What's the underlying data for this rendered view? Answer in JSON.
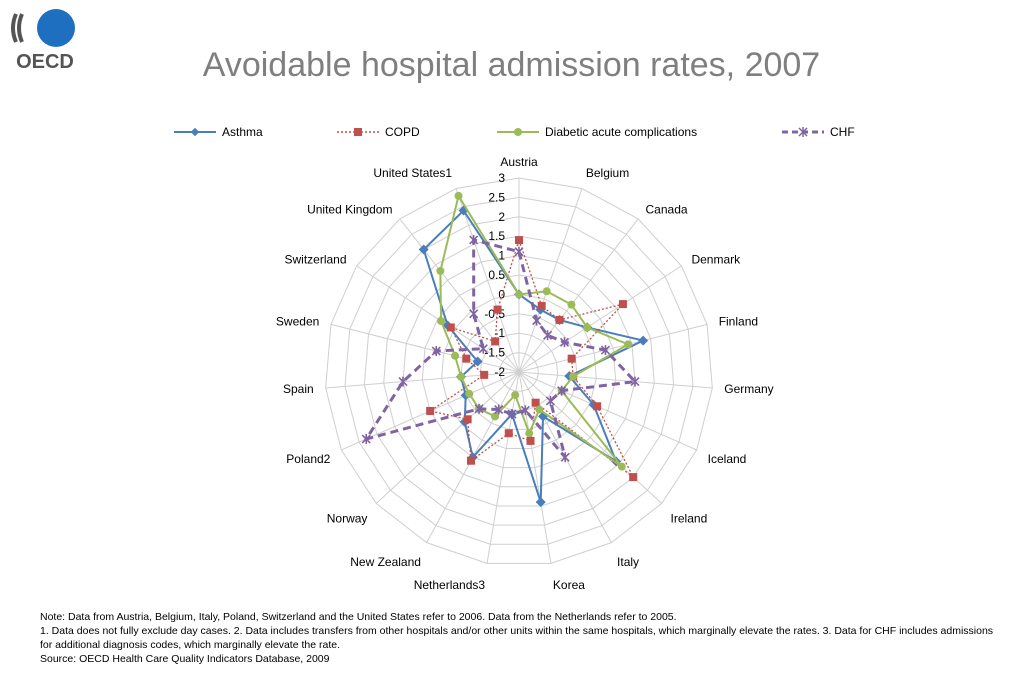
{
  "header": {
    "title": "Avoidable hospital admission rates, 2007",
    "logo_text": "OECD"
  },
  "legend": [
    {
      "name": "Asthma"
    },
    {
      "name": "COPD"
    },
    {
      "name": "Diabetic acute complications"
    },
    {
      "name": "CHF"
    }
  ],
  "chart_data": {
    "type": "radar",
    "title": "Avoidable hospital admission rates, 2007",
    "categories": [
      "Austria",
      "Belgium",
      "Canada",
      "Denmark",
      "Finland",
      "Germany",
      "Iceland",
      "Ireland",
      "Italy",
      "Korea",
      "Netherlands3",
      "New Zealand",
      "Norway",
      "Poland2",
      "Spain",
      "Sweden",
      "Switzerland",
      "United Kingdom",
      "United States1"
    ],
    "radial_range": [
      -2,
      3
    ],
    "radial_ticks": [
      "3",
      "2.5",
      "2",
      "1.5",
      "1",
      "0.5",
      "0",
      "-0.5",
      "-1",
      "-1.5",
      "-2"
    ],
    "tick_values": [
      3,
      2.5,
      2,
      1.5,
      1,
      0.5,
      0,
      -0.5,
      -1,
      -1.5,
      -2
    ],
    "grid": true,
    "legend_position": "top",
    "series": [
      {
        "name": "Asthma",
        "color": "#4a7ebb",
        "style": "solid",
        "marker": "diamond",
        "values": [
          0.0,
          -0.3,
          -0.3,
          0.1,
          1.3,
          -0.7,
          0.1,
          1.4,
          -0.7,
          1.4,
          -0.9,
          0.5,
          -0.1,
          -0.5,
          -0.5,
          -0.9,
          0.2,
          2.0,
          2.4
        ]
      },
      {
        "name": "COPD",
        "color": "#c0504d",
        "style": "dotted",
        "marker": "square",
        "values": [
          1.4,
          -0.2,
          -0.3,
          1.2,
          -0.6,
          -0.6,
          0.2,
          2.0,
          -1.1,
          -0.2,
          -0.4,
          0.6,
          -0.2,
          0.5,
          -1.1,
          -0.6,
          0.1,
          -1.0,
          -0.3
        ]
      },
      {
        "name": "Diabetic acute complications",
        "color": "#9bbb59",
        "style": "solid",
        "marker": "circle",
        "values": [
          0.0,
          0.2,
          0.2,
          0.1,
          0.9,
          -0.6,
          -0.8,
          1.6,
          -0.9,
          -0.4,
          -1.4,
          -0.7,
          -0.6,
          -0.6,
          -0.5,
          -0.3,
          0.4,
          1.3,
          2.8
        ]
      },
      {
        "name": "CHF",
        "color": "#8064a2",
        "style": "dashed",
        "marker": "star",
        "values": [
          1.1,
          -0.6,
          -0.8,
          -0.6,
          0.3,
          1.0,
          -0.8,
          -0.9,
          0.5,
          -1.0,
          -0.9,
          -0.9,
          -0.6,
          2.3,
          1.0,
          0.2,
          -0.9,
          -0.1,
          1.6
        ]
      }
    ]
  },
  "footnotes": {
    "line1": "Note: Data from Austria, Belgium, Italy, Poland, Switzerland and the United States refer to 2006. Data from the Netherlands refer to 2005.",
    "line2": "1. Data does not fully exclude day cases. 2. Data includes transfers from other hospitals and/or other units within the same hospitals, which marginally elevate the rates. 3. Data for CHF includes admissions for additional diagnosis codes, which marginally elevate the rate.",
    "line3": "Source: OECD Health Care Quality Indicators Database, 2009"
  }
}
